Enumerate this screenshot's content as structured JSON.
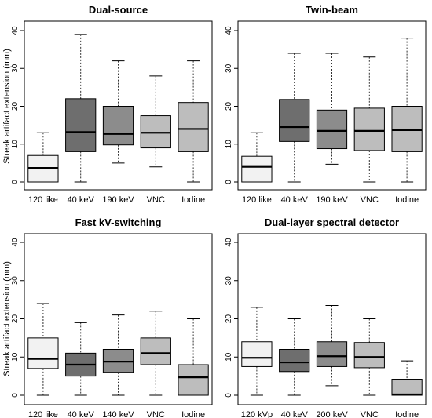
{
  "chart_data": [
    {
      "type": "box",
      "title": "Dual-source",
      "ylabel": "Streak artifact extension (mm)",
      "ylim": [
        0,
        40
      ],
      "yticks": [
        0,
        10,
        20,
        30,
        40
      ],
      "categories": [
        "120 like",
        "40 keV",
        "190 keV",
        "VNC",
        "Iodine"
      ],
      "boxes": [
        {
          "min": 0,
          "q1": 0,
          "median": 3.7,
          "q3": 7,
          "max": 13,
          "fill": "#f2f2f2"
        },
        {
          "min": 0,
          "q1": 8,
          "median": 13.2,
          "q3": 22,
          "max": 39,
          "fill": "#6e6e6e"
        },
        {
          "min": 5,
          "q1": 9.8,
          "median": 12.7,
          "q3": 20,
          "max": 32,
          "fill": "#8c8c8c"
        },
        {
          "min": 4,
          "q1": 9,
          "median": 13,
          "q3": 17.5,
          "max": 28,
          "fill": "#bdbdbd"
        },
        {
          "min": 0,
          "q1": 8,
          "median": 14,
          "q3": 21,
          "max": 32,
          "fill": "#bdbdbd"
        }
      ]
    },
    {
      "type": "box",
      "title": "Twin-beam",
      "ylabel": "",
      "ylim": [
        0,
        40
      ],
      "yticks": [
        0,
        10,
        20,
        30,
        40
      ],
      "categories": [
        "120 like",
        "40 keV",
        "190 keV",
        "VNC",
        "Iodine"
      ],
      "boxes": [
        {
          "min": 0,
          "q1": 0,
          "median": 4,
          "q3": 6.8,
          "max": 13,
          "fill": "#f2f2f2"
        },
        {
          "min": 0,
          "q1": 10.7,
          "median": 14.5,
          "q3": 21.8,
          "max": 34,
          "fill": "#6e6e6e"
        },
        {
          "min": 4.7,
          "q1": 8.8,
          "median": 13.5,
          "q3": 19,
          "max": 34,
          "fill": "#8c8c8c"
        },
        {
          "min": 0,
          "q1": 8.3,
          "median": 13.5,
          "q3": 19.5,
          "max": 33,
          "fill": "#bdbdbd"
        },
        {
          "min": 0,
          "q1": 8,
          "median": 13.7,
          "q3": 20,
          "max": 38,
          "fill": "#bdbdbd"
        }
      ]
    },
    {
      "type": "box",
      "title": "Fast kV-switching",
      "ylabel": "Streak artifact extension (mm)",
      "ylim": [
        0,
        40
      ],
      "yticks": [
        0,
        10,
        20,
        30,
        40
      ],
      "categories": [
        "120 like",
        "40 keV",
        "140 keV",
        "VNC",
        "Iodine"
      ],
      "boxes": [
        {
          "min": 0,
          "q1": 7,
          "median": 9.5,
          "q3": 15,
          "max": 24,
          "fill": "#f2f2f2"
        },
        {
          "min": 0,
          "q1": 5,
          "median": 8,
          "q3": 11,
          "max": 19,
          "fill": "#6e6e6e"
        },
        {
          "min": 0,
          "q1": 6,
          "median": 8.8,
          "q3": 12,
          "max": 21,
          "fill": "#8c8c8c"
        },
        {
          "min": 0,
          "q1": 8,
          "median": 11,
          "q3": 15,
          "max": 22,
          "fill": "#bdbdbd"
        },
        {
          "min": 0,
          "q1": 0,
          "median": 4.7,
          "q3": 8,
          "max": 20,
          "fill": "#bdbdbd"
        }
      ]
    },
    {
      "type": "box",
      "title": "Dual-layer spectral detector",
      "ylabel": "",
      "ylim": [
        0,
        40
      ],
      "yticks": [
        0,
        10,
        20,
        30,
        40
      ],
      "categories": [
        "120 kVp",
        "40 keV",
        "200 keV",
        "VNC",
        "Iodine"
      ],
      "boxes": [
        {
          "min": 0,
          "q1": 7.5,
          "median": 9.8,
          "q3": 14,
          "max": 23,
          "fill": "#f2f2f2"
        },
        {
          "min": 0,
          "q1": 6.2,
          "median": 8.6,
          "q3": 12,
          "max": 20,
          "fill": "#6e6e6e"
        },
        {
          "min": 2.5,
          "q1": 7.5,
          "median": 10.2,
          "q3": 14,
          "max": 23.5,
          "fill": "#8c8c8c"
        },
        {
          "min": 0,
          "q1": 7.2,
          "median": 10,
          "q3": 13.8,
          "max": 20,
          "fill": "#bdbdbd"
        },
        {
          "min": 0,
          "q1": 0,
          "median": 0.2,
          "q3": 4.2,
          "max": 9,
          "fill": "#bdbdbd"
        }
      ]
    }
  ]
}
